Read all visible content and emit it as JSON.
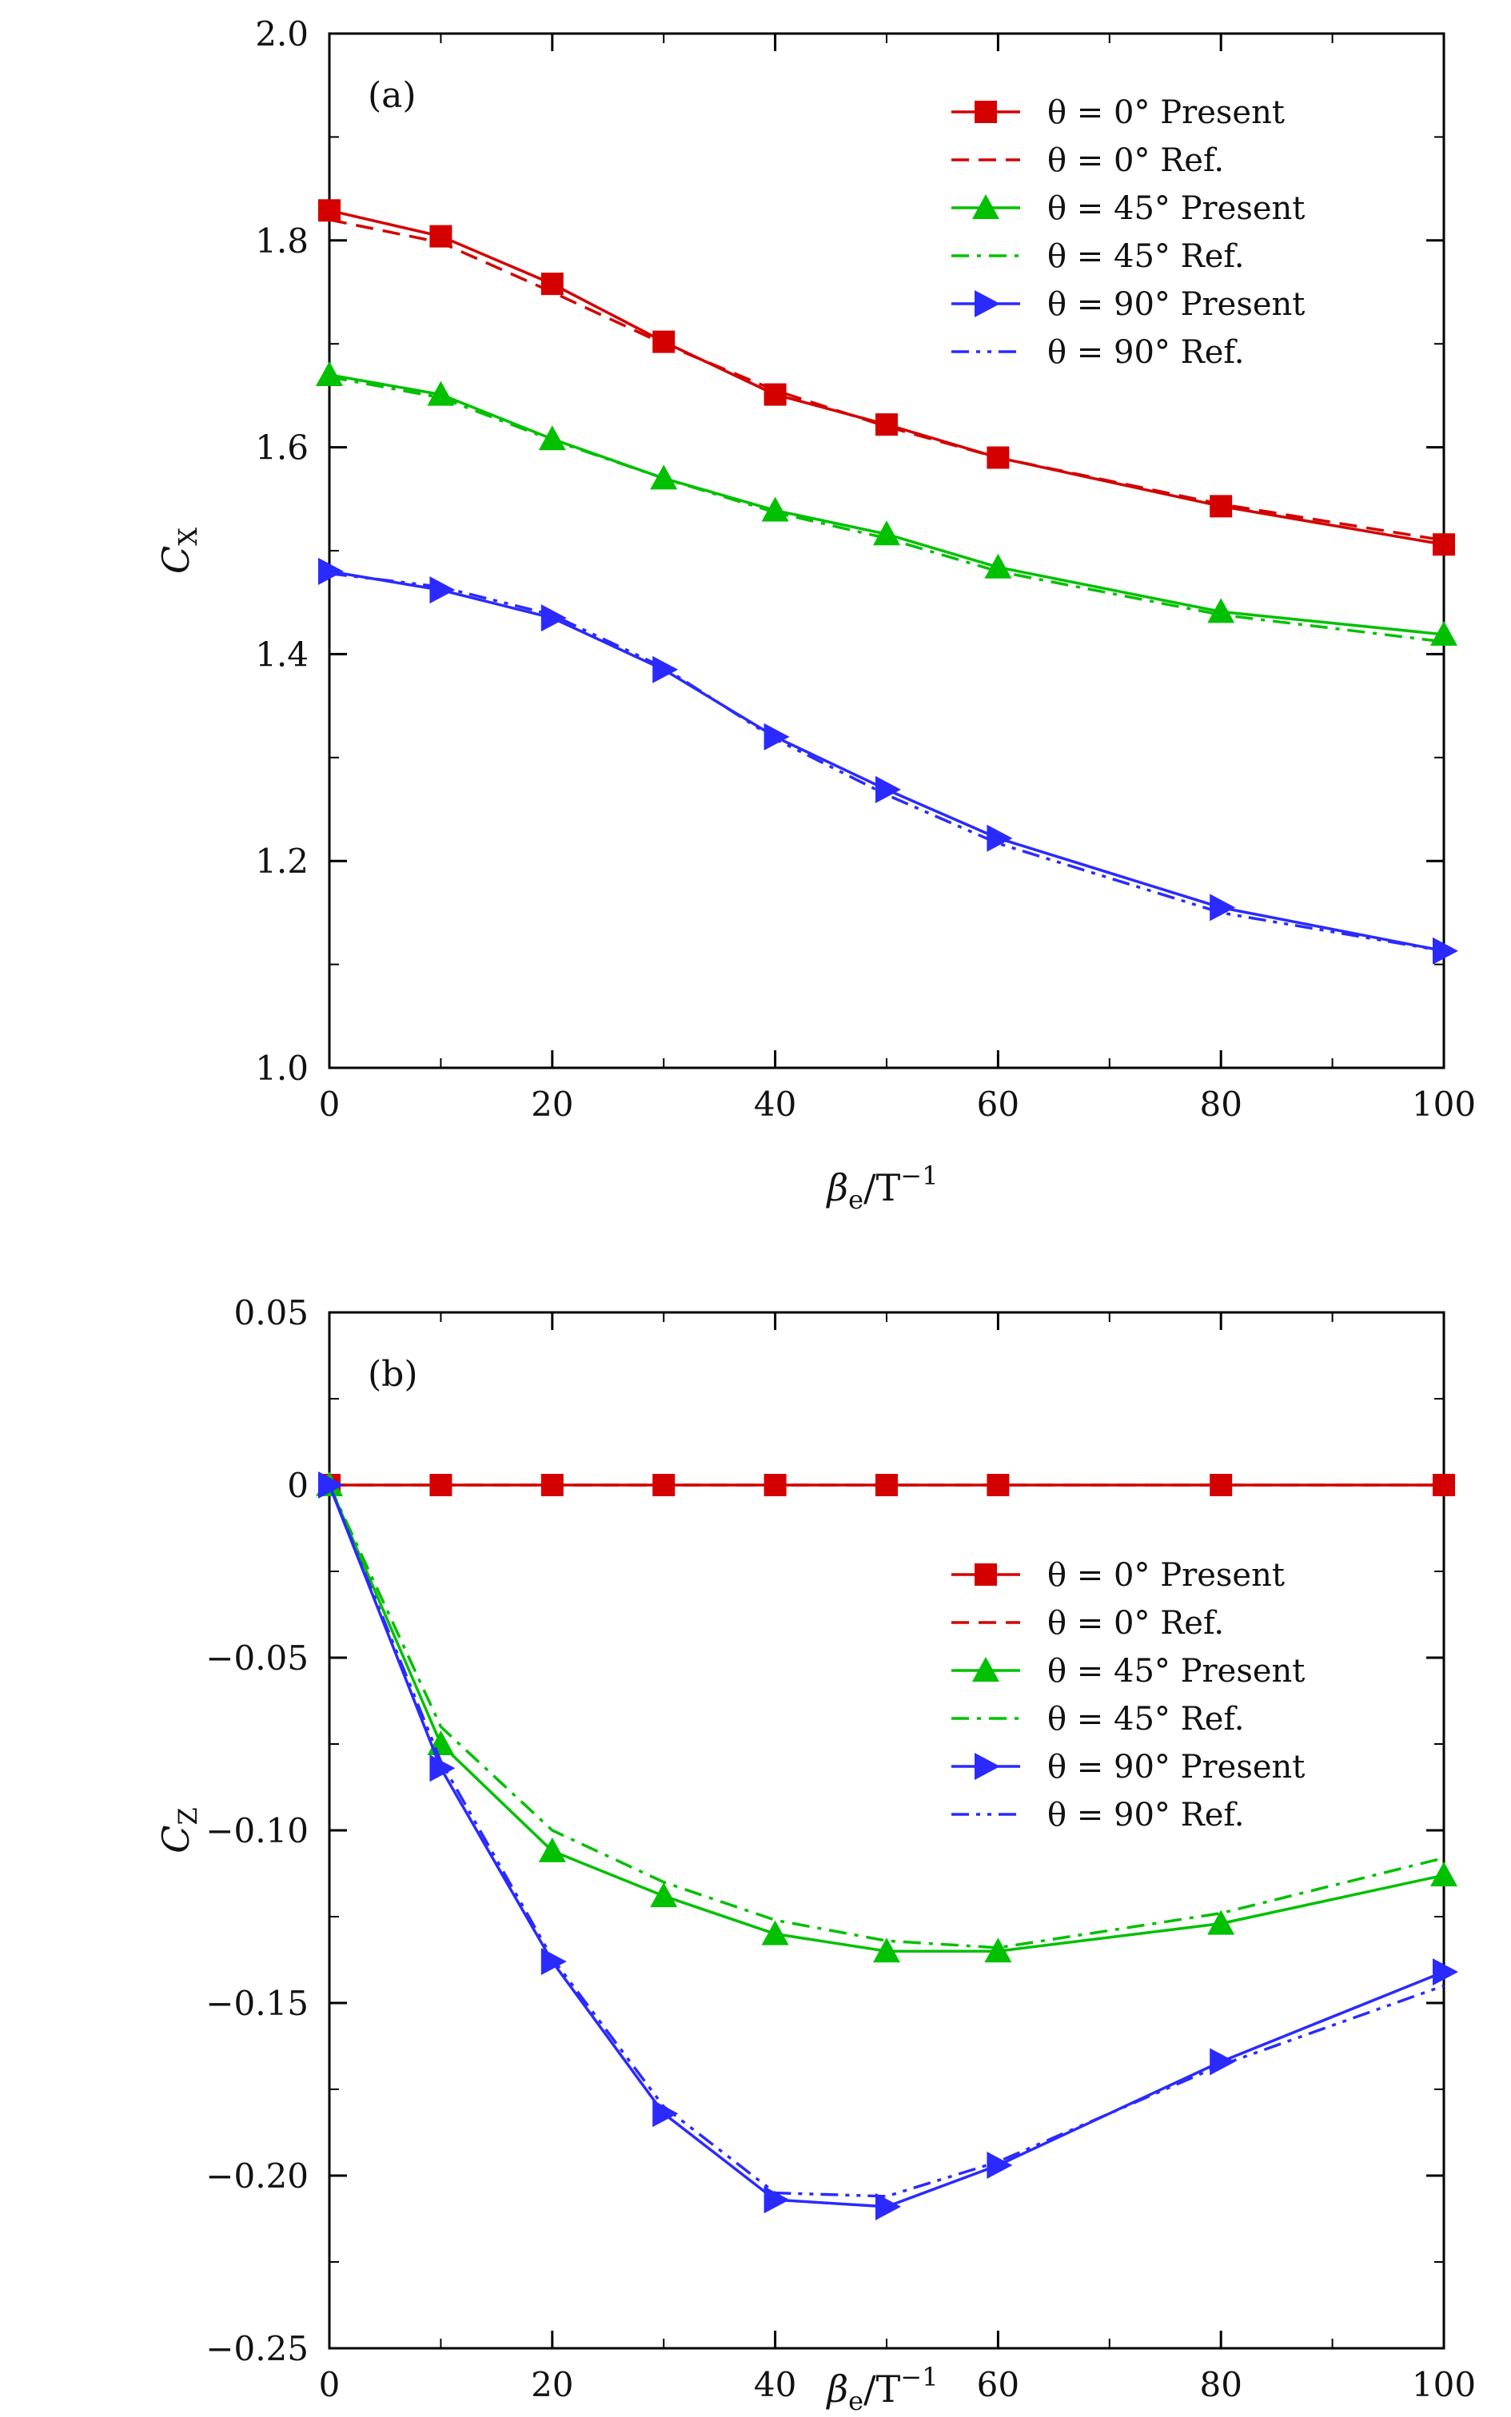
{
  "chart_data": [
    {
      "type": "line",
      "panel_label": "(a)",
      "ylabel_main": "C",
      "ylabel_sub": "X",
      "xlabel_main": "β",
      "xlabel_sub": "e",
      "xlabel_unit": "/T",
      "xlabel_sup": "−1",
      "xlim": [
        0,
        100
      ],
      "ylim": [
        1.0,
        2.0
      ],
      "x_ticks": [
        0,
        20,
        40,
        60,
        80,
        100
      ],
      "x_tick_labels": [
        "0",
        "20",
        "40",
        "60",
        "80",
        "100"
      ],
      "y_ticks": [
        1.0,
        1.2,
        1.4,
        1.6,
        1.8,
        2.0
      ],
      "y_tick_labels": [
        "1.0",
        "1.2",
        "1.4",
        "1.6",
        "1.8",
        "2.0"
      ],
      "legend_position": "top-right",
      "series": [
        {
          "name": "θ = 0° Present",
          "color": "#d40000",
          "style": "solid",
          "marker": "square",
          "x": [
            0,
            10,
            20,
            30,
            40,
            50,
            60,
            80,
            100
          ],
          "y": [
            1.829,
            1.804,
            1.758,
            1.702,
            1.651,
            1.622,
            1.59,
            1.543,
            1.506
          ]
        },
        {
          "name": "θ = 0° Ref.",
          "color": "#d40000",
          "style": "dashed",
          "marker": "none",
          "x": [
            0,
            10,
            20,
            30,
            40,
            50,
            60,
            80,
            100
          ],
          "y": [
            1.82,
            1.798,
            1.75,
            1.7,
            1.655,
            1.62,
            1.59,
            1.545,
            1.51
          ]
        },
        {
          "name": "θ = 45° Present",
          "color": "#00c000",
          "style": "solid",
          "marker": "triangle-up",
          "x": [
            0,
            10,
            20,
            30,
            40,
            50,
            60,
            80,
            100
          ],
          "y": [
            1.67,
            1.651,
            1.608,
            1.57,
            1.539,
            1.516,
            1.484,
            1.441,
            1.419
          ]
        },
        {
          "name": "θ = 45° Ref.",
          "color": "#00c000",
          "style": "dashdot",
          "marker": "none",
          "x": [
            0,
            10,
            20,
            30,
            40,
            50,
            60,
            80,
            100
          ],
          "y": [
            1.668,
            1.648,
            1.607,
            1.57,
            1.537,
            1.512,
            1.48,
            1.438,
            1.412
          ]
        },
        {
          "name": "θ = 90° Present",
          "color": "#2a2aff",
          "style": "solid",
          "marker": "triangle-right",
          "x": [
            0,
            10,
            20,
            30,
            40,
            50,
            60,
            80,
            100
          ],
          "y": [
            1.48,
            1.462,
            1.435,
            1.385,
            1.32,
            1.269,
            1.222,
            1.155,
            1.113
          ]
        },
        {
          "name": "θ = 90° Ref.",
          "color": "#2a2aff",
          "style": "dashdotdot",
          "marker": "none",
          "x": [
            0,
            10,
            20,
            30,
            40,
            50,
            60,
            80,
            100
          ],
          "y": [
            1.478,
            1.465,
            1.438,
            1.387,
            1.318,
            1.264,
            1.217,
            1.15,
            1.113
          ]
        }
      ]
    },
    {
      "type": "line",
      "panel_label": "(b)",
      "ylabel_main": "C",
      "ylabel_sub": "Z",
      "xlabel_main": "β",
      "xlabel_sub": "e",
      "xlabel_unit": "/T",
      "xlabel_sup": "−1",
      "xlim": [
        0,
        100
      ],
      "ylim": [
        -0.25,
        0.05
      ],
      "x_ticks": [
        0,
        20,
        40,
        60,
        80,
        100
      ],
      "x_tick_labels": [
        "0",
        "20",
        "40",
        "60",
        "80",
        "100"
      ],
      "y_ticks": [
        -0.25,
        -0.2,
        -0.15,
        -0.1,
        -0.05,
        0,
        0.05
      ],
      "y_tick_labels": [
        "−0.25",
        "−0.20",
        "−0.15",
        "−0.10",
        "−0.05",
        "0",
        "0.05"
      ],
      "legend_position": "center-right",
      "series": [
        {
          "name": "θ = 0° Present",
          "color": "#d40000",
          "style": "solid",
          "marker": "square",
          "x": [
            0,
            10,
            20,
            30,
            40,
            50,
            60,
            80,
            100
          ],
          "y": [
            0,
            0,
            0,
            0,
            0,
            0,
            0,
            0,
            0
          ]
        },
        {
          "name": "θ = 0° Ref.",
          "color": "#d40000",
          "style": "dashed",
          "marker": "none",
          "x": [
            0,
            10,
            20,
            30,
            40,
            50,
            60,
            80,
            100
          ],
          "y": [
            0,
            0,
            0,
            0,
            0,
            0,
            0,
            0,
            0
          ]
        },
        {
          "name": "θ = 45° Present",
          "color": "#00c000",
          "style": "solid",
          "marker": "triangle-up",
          "x": [
            0,
            10,
            20,
            30,
            40,
            50,
            60,
            80,
            100
          ],
          "y": [
            0,
            -0.075,
            -0.106,
            -0.119,
            -0.13,
            -0.135,
            -0.135,
            -0.127,
            -0.113
          ]
        },
        {
          "name": "θ = 45° Ref.",
          "color": "#00c000",
          "style": "dashdot",
          "marker": "none",
          "x": [
            0,
            10,
            20,
            30,
            40,
            50,
            60,
            80,
            100
          ],
          "y": [
            0,
            -0.07,
            -0.1,
            -0.115,
            -0.126,
            -0.132,
            -0.134,
            -0.124,
            -0.108
          ]
        },
        {
          "name": "θ = 90° Present",
          "color": "#2a2aff",
          "style": "solid",
          "marker": "triangle-right",
          "x": [
            0,
            10,
            20,
            30,
            40,
            50,
            60,
            80,
            100
          ],
          "y": [
            0,
            -0.082,
            -0.138,
            -0.182,
            -0.207,
            -0.209,
            -0.197,
            -0.167,
            -0.141
          ]
        },
        {
          "name": "θ = 90° Ref.",
          "color": "#2a2aff",
          "style": "dashdotdot",
          "marker": "none",
          "x": [
            0,
            10,
            20,
            30,
            40,
            50,
            60,
            80,
            100
          ],
          "y": [
            0,
            -0.08,
            -0.137,
            -0.18,
            -0.205,
            -0.206,
            -0.196,
            -0.168,
            -0.145
          ]
        }
      ]
    }
  ]
}
